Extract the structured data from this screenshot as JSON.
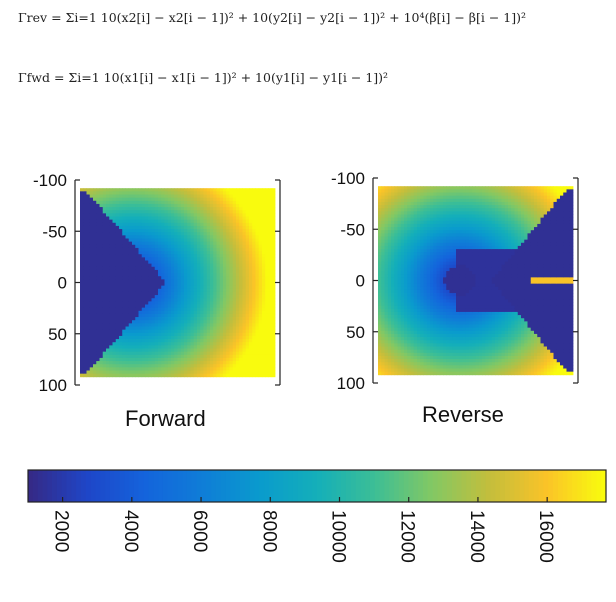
{
  "equations": {
    "rev": "Γrev = Σi=1 10(x2[i] − x2[i − 1])² + 10(y2[i] − y2[i − 1])² + 10⁴(β[i] − β[i − 1])²",
    "fwd": "Γfwd = Σi=1 10(x1[i] − x1[i − 1])² + 10(y1[i] − y1[i − 1])²"
  },
  "chart_data": [
    {
      "type": "heatmap",
      "title": "Forward",
      "y_ticks": [
        -100,
        -50,
        0,
        50,
        100
      ],
      "ylim": [
        -100,
        100
      ],
      "colorscale": "parula"
    },
    {
      "type": "heatmap",
      "title": "Reverse",
      "y_ticks": [
        -100,
        -50,
        0,
        50,
        100
      ],
      "ylim": [
        -100,
        100
      ],
      "colorscale": "parula"
    }
  ],
  "colorbar": {
    "ticks": [
      2000,
      4000,
      6000,
      8000,
      10000,
      12000,
      14000,
      16000
    ],
    "range": [
      1000,
      17700
    ],
    "orientation": "horizontal"
  }
}
